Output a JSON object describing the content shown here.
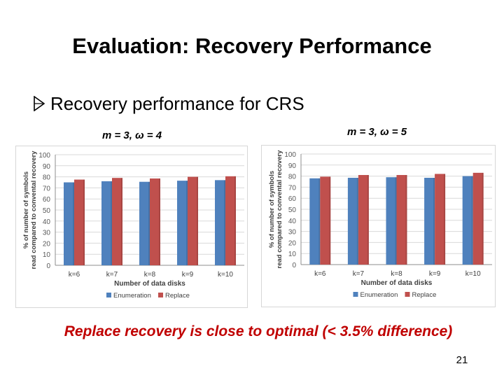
{
  "slide": {
    "title": "Evaluation: Recovery Performance",
    "bullet": "Recovery performance for CRS",
    "conclusion": "Replace recovery is close to optimal (< 3.5% difference)",
    "page_number": "21"
  },
  "chart_data": [
    {
      "type": "bar",
      "title": "m = 3, ω = 4",
      "xlabel": "Number of data disks",
      "ylabel": "% of number of symbols read compared to convental recovery",
      "ylim": [
        0,
        100
      ],
      "yticks": [
        0,
        10,
        20,
        30,
        40,
        50,
        60,
        70,
        80,
        90,
        100
      ],
      "grid": true,
      "legend_position": "bottom",
      "categories": [
        "k=6",
        "k=7",
        "k=8",
        "k=9",
        "k=10"
      ],
      "series": [
        {
          "name": "Enumeration",
          "color": "#4f81bd",
          "values": [
            75,
            76,
            75.5,
            76.5,
            77
          ]
        },
        {
          "name": "Replace",
          "color": "#c0504d",
          "values": [
            77.5,
            79,
            78.5,
            80,
            80.5
          ]
        }
      ]
    },
    {
      "type": "bar",
      "title": "m = 3, ω = 5",
      "xlabel": "Number of data disks",
      "ylabel": "% of number of symbols read compared to convental recovery",
      "ylim": [
        0,
        100
      ],
      "yticks": [
        0,
        10,
        20,
        30,
        40,
        50,
        60,
        70,
        80,
        90,
        100
      ],
      "grid": true,
      "legend_position": "bottom",
      "categories": [
        "k=6",
        "k=7",
        "k=8",
        "k=9",
        "k=10"
      ],
      "series": [
        {
          "name": "Enumeration",
          "color": "#4f81bd",
          "values": [
            78,
            78.5,
            79,
            78.5,
            80
          ]
        },
        {
          "name": "Replace",
          "color": "#c0504d",
          "values": [
            79.5,
            81,
            81,
            82,
            83
          ]
        }
      ]
    }
  ]
}
